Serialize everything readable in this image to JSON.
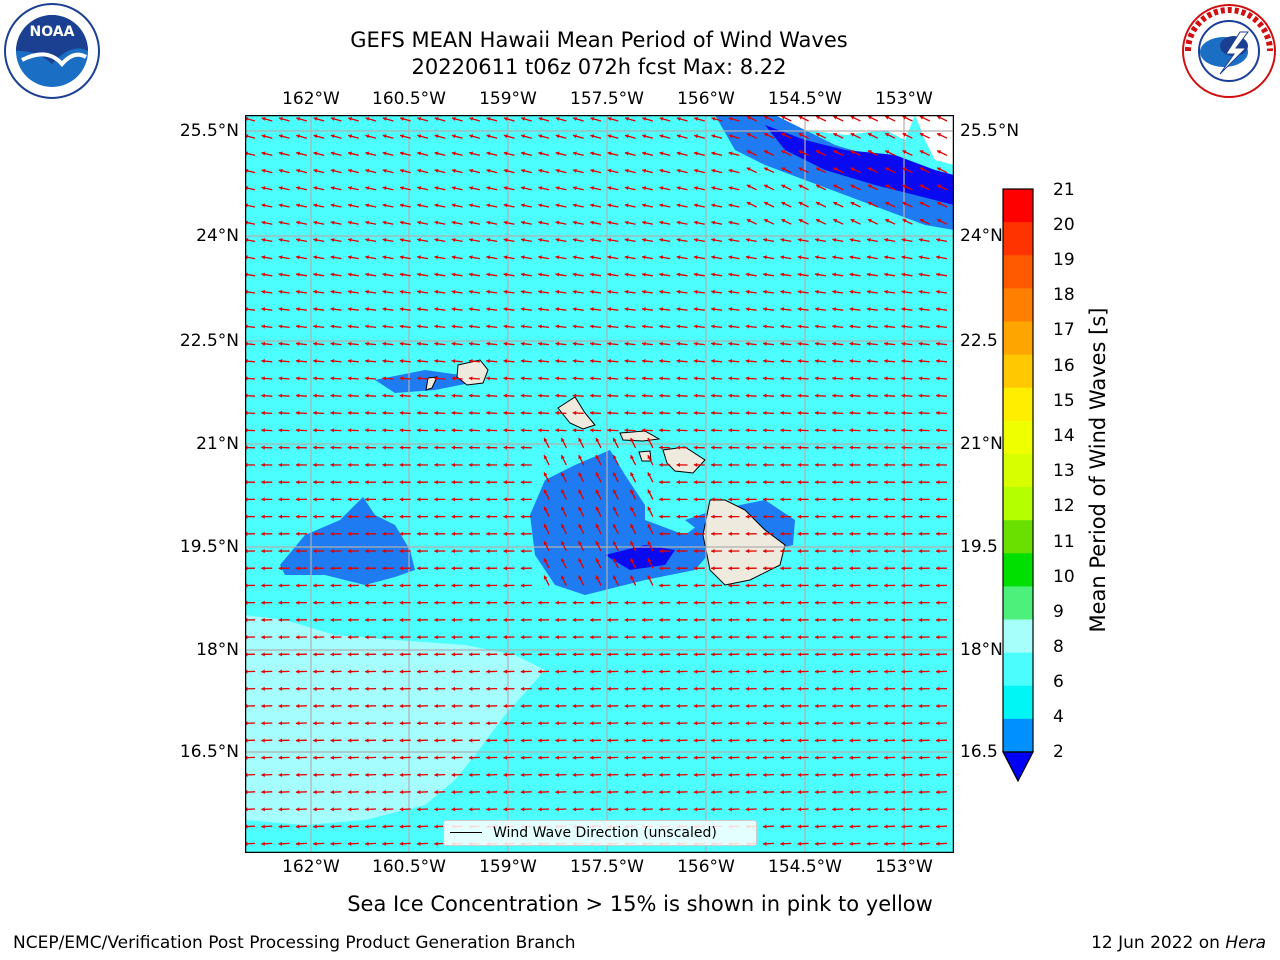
{
  "title": {
    "line1": "GEFS MEAN Hawaii Mean Period of Wind Waves",
    "line2": "20220611 t06z 072h fcst   Max: 8.22"
  },
  "logos": {
    "left": {
      "name": "noaa-logo",
      "text": "NOAA",
      "ring": "NATIONAL OCEANIC AND ATMOSPHERIC ADMINISTRATION · U.S. DEPARTMENT OF COMMERCE"
    },
    "right": {
      "name": "nws-logo",
      "ring": "NATIONAL WEATHER SERVICE"
    }
  },
  "axes": {
    "lon_ticks": [
      "162°W",
      "160.5°W",
      "159°W",
      "157.5°W",
      "156°W",
      "154.5°W",
      "153°W"
    ],
    "lat_ticks_left": [
      "25.5°N",
      "24°N",
      "22.5°N",
      "21°N",
      "19.5°N",
      "18°N",
      "16.5°N"
    ],
    "lat_ticks_right": [
      "25.5°N",
      "24°N",
      "22.5",
      "21°N",
      "19.5",
      "18°N",
      "16.5"
    ]
  },
  "legend": {
    "label": "Wind Wave Direction (unscaled)"
  },
  "colorbar": {
    "label": "Mean Period of Wind Waves [s]",
    "ticks": [
      "21",
      "20",
      "19",
      "18",
      "17",
      "16",
      "15",
      "14",
      "13",
      "12",
      "11",
      "10",
      "9",
      "8",
      "6",
      "4",
      "2"
    ],
    "colors": [
      "#ff0000",
      "#ff3300",
      "#ff5a00",
      "#ff8000",
      "#ffa500",
      "#ffc800",
      "#ffee00",
      "#f0ff00",
      "#d8ff00",
      "#b4ff00",
      "#6ae000",
      "#00e000",
      "#4cf07a",
      "#a6fffb",
      "#4cfdfd",
      "#00f5f5",
      "#0090ff"
    ],
    "underflow_color": "#0000f5"
  },
  "map": {
    "ocean_color": "#4cfefe",
    "low_period_color": "#1f7bf2",
    "lowest_period_color": "#0a0af0",
    "high_period_color": "#a6fdfd",
    "land_color": "#efeade",
    "arrow_color": "#e00000",
    "grid_color": "#b0b0b0"
  },
  "note": "Sea Ice Concentration > 15% is shown in pink to yellow",
  "footer": {
    "left": "NCEP/EMC/Verification Post Processing Product Generation Branch",
    "right_prefix": "12 Jun 2022 on ",
    "right_host": "Hera"
  }
}
